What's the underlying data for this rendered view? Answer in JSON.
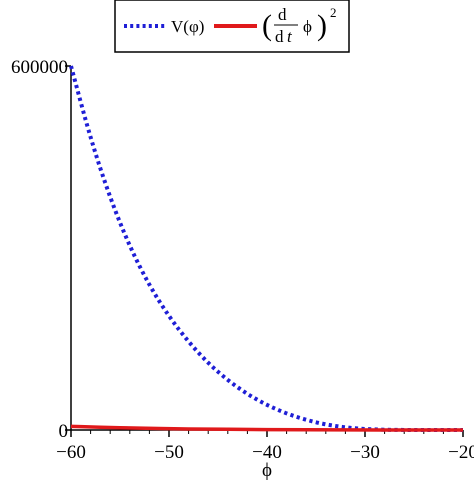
{
  "chart_data": {
    "type": "line",
    "xlabel": "ϕ",
    "ylabel": "",
    "xlim": [
      -60,
      -20
    ],
    "ylim": [
      0,
      600000
    ],
    "x_ticks": [
      -60,
      -50,
      -40,
      -30,
      -20
    ],
    "x_tick_labels": [
      "−60",
      "−50",
      "−40",
      "−30",
      "−20"
    ],
    "y_ticks": [
      0,
      600000
    ],
    "y_tick_labels": [
      "0",
      "600000"
    ],
    "legend": {
      "placement": "top",
      "entries": [
        {
          "label": "V(φ)",
          "style": "dotted",
          "color": "#1f1fd6"
        },
        {
          "label": "(d/dt ϕ)^2",
          "style": "solid",
          "color": "#e0191b"
        }
      ],
      "deriv_num": "d",
      "deriv_den": "d",
      "deriv_var": "t",
      "deriv_phi": "ϕ",
      "deriv_exp": "2"
    },
    "series": [
      {
        "name": "V(φ)",
        "color": "#1f1fd6",
        "style": "dotted",
        "x": [
          -60,
          -58,
          -56,
          -54,
          -52,
          -50,
          -48,
          -46,
          -44,
          -42,
          -40,
          -38,
          -36,
          -34,
          -32,
          -30,
          -28,
          -26,
          -24,
          -22,
          -20
        ],
        "y": [
          600000,
          480000,
          382000,
          302000,
          238000,
          187000,
          145000,
          110000,
          82000,
          59000,
          41000,
          27000,
          16500,
          9000,
          4200,
          1500,
          400,
          60,
          0,
          0,
          0
        ]
      },
      {
        "name": "(d/dt ϕ)^2",
        "color": "#e0191b",
        "style": "solid",
        "x": [
          -60,
          -58,
          -56,
          -54,
          -52,
          -50,
          -46,
          -42,
          -38,
          -34,
          -30,
          -26,
          -22,
          -20
        ],
        "y": [
          6000,
          5000,
          4200,
          3400,
          2700,
          2100,
          1400,
          900,
          500,
          250,
          100,
          30,
          5,
          0
        ]
      }
    ]
  }
}
